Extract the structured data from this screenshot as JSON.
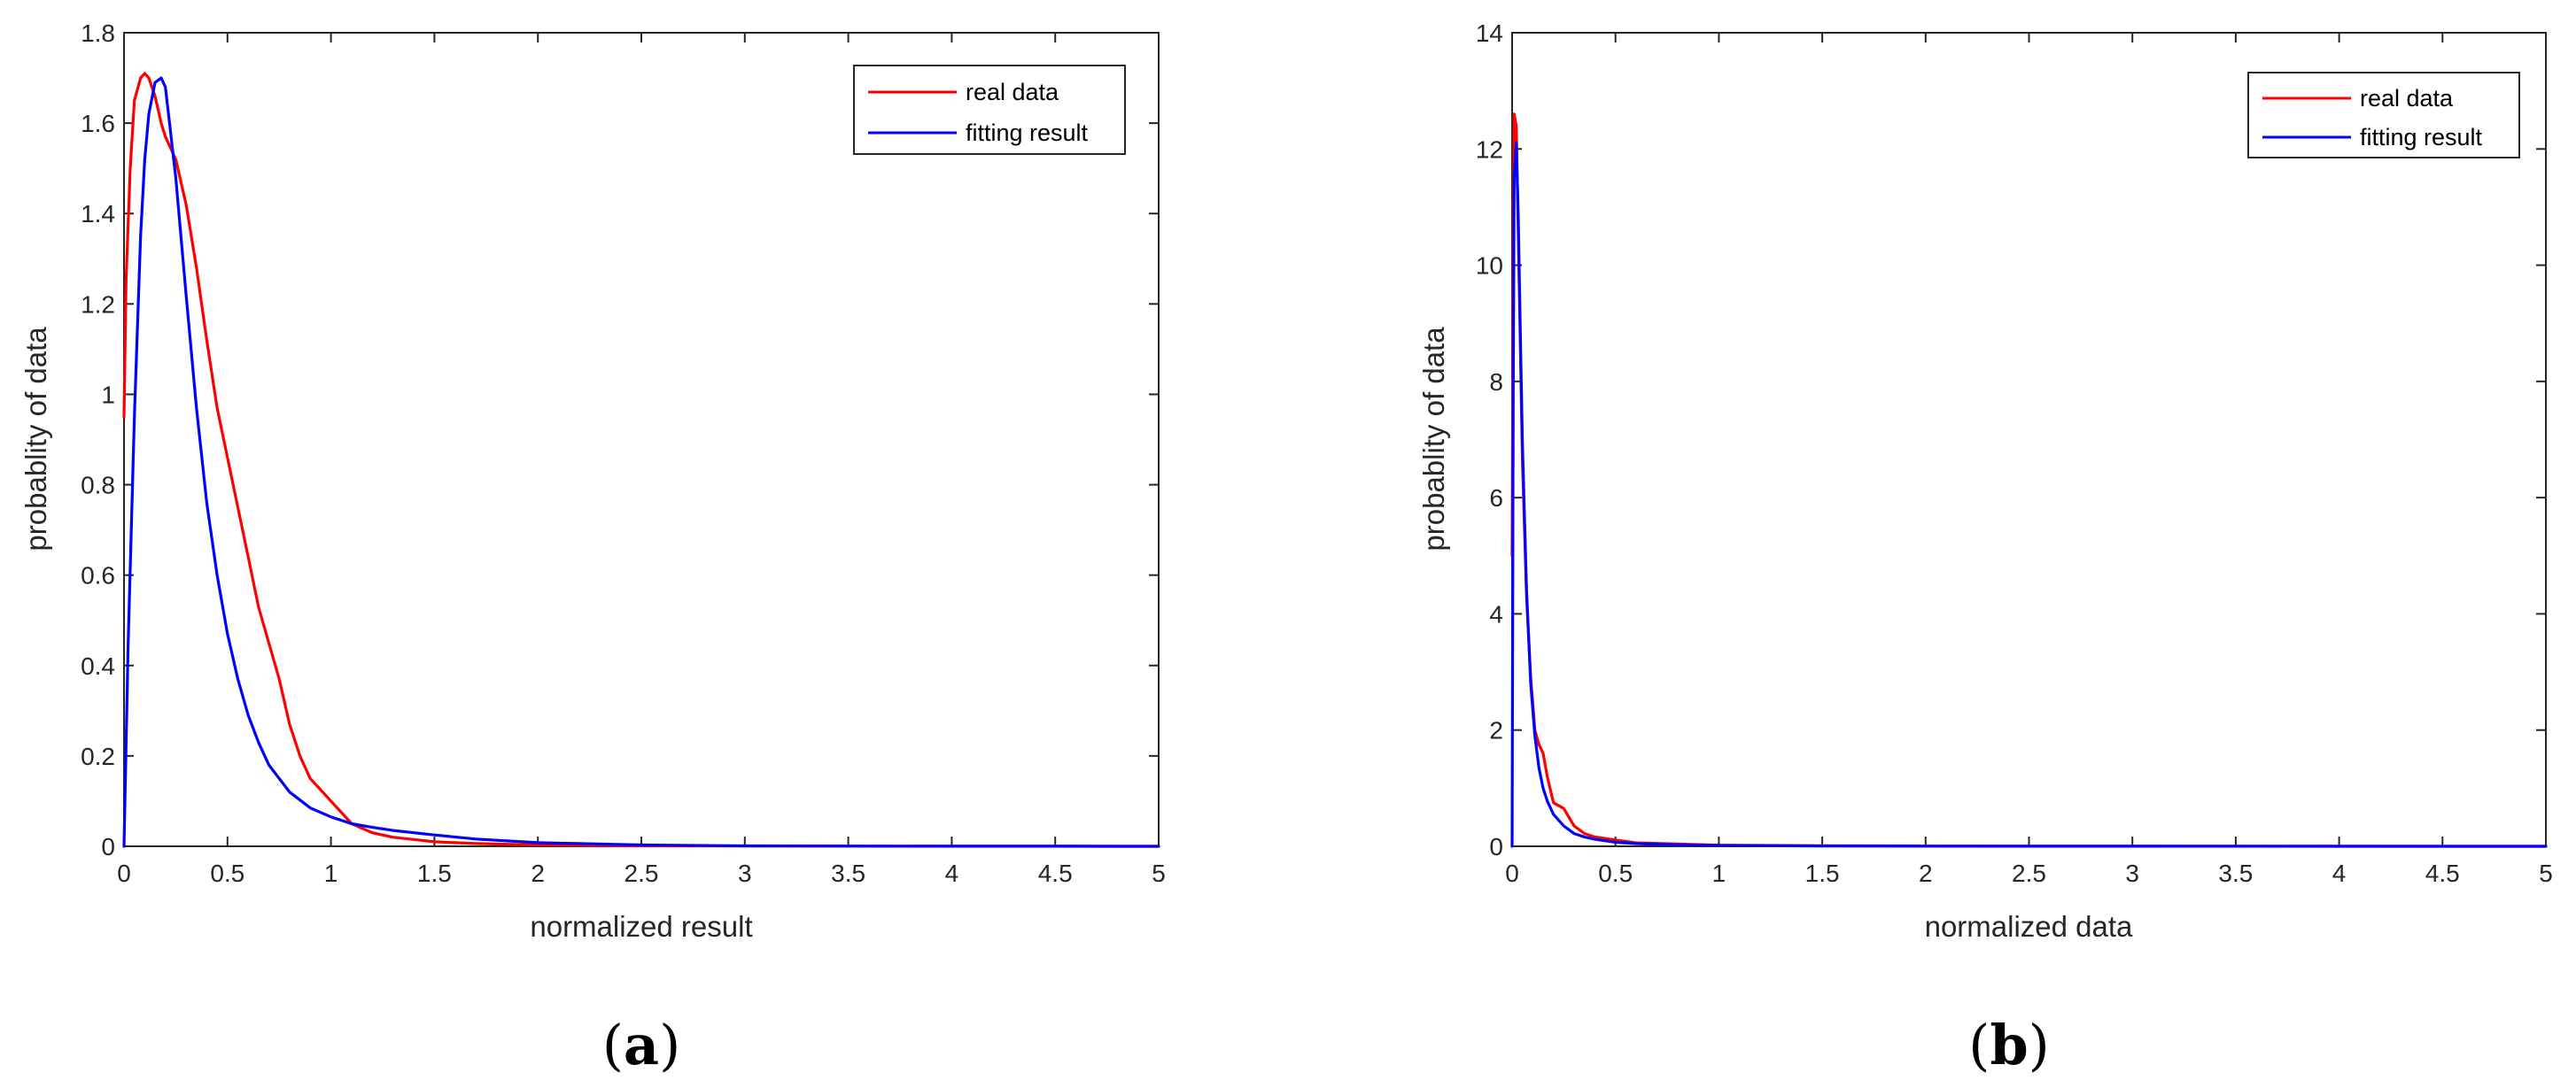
{
  "chart_data": [
    {
      "type": "line",
      "panel_label": "a",
      "xlabel": "normalized result",
      "ylabel": "probablity of data",
      "xlim": [
        0,
        5
      ],
      "ylim": [
        0,
        1.8
      ],
      "xticks": [
        "0",
        "0.5",
        "1",
        "1.5",
        "2",
        "2.5",
        "3",
        "3.5",
        "4",
        "4.5",
        "5"
      ],
      "yticks": [
        "0",
        "0.2",
        "0.4",
        "0.6",
        "0.8",
        "1",
        "1.2",
        "1.4",
        "1.6",
        "1.8"
      ],
      "legend_position": "top-right",
      "series": [
        {
          "name": "real data",
          "color": "#ff0000",
          "x": [
            0,
            0.01,
            0.03,
            0.05,
            0.08,
            0.1,
            0.12,
            0.15,
            0.18,
            0.2,
            0.25,
            0.3,
            0.35,
            0.4,
            0.45,
            0.5,
            0.55,
            0.6,
            0.65,
            0.7,
            0.75,
            0.8,
            0.85,
            0.9,
            1.0,
            1.1,
            1.2,
            1.3,
            1.4,
            1.5,
            1.7,
            2.0,
            2.5,
            3.0,
            3.5,
            4.0,
            4.5,
            5.0
          ],
          "y": [
            0.95,
            1.25,
            1.5,
            1.65,
            1.7,
            1.71,
            1.7,
            1.66,
            1.6,
            1.57,
            1.52,
            1.42,
            1.28,
            1.12,
            0.97,
            0.86,
            0.75,
            0.64,
            0.53,
            0.45,
            0.37,
            0.27,
            0.2,
            0.15,
            0.1,
            0.05,
            0.03,
            0.02,
            0.015,
            0.01,
            0.006,
            0.003,
            0.001,
            0.0005,
            0.0003,
            0.0002,
            0.0001,
            0
          ]
        },
        {
          "name": "fitting result",
          "color": "#0000ff",
          "x": [
            0,
            0.02,
            0.05,
            0.08,
            0.1,
            0.12,
            0.15,
            0.18,
            0.2,
            0.22,
            0.25,
            0.3,
            0.35,
            0.4,
            0.45,
            0.5,
            0.55,
            0.6,
            0.65,
            0.7,
            0.8,
            0.9,
            1.0,
            1.1,
            1.2,
            1.3,
            1.5,
            1.7,
            2.0,
            2.5,
            3.0,
            3.5,
            4.0,
            4.5,
            5.0
          ],
          "y": [
            0,
            0.45,
            0.95,
            1.35,
            1.52,
            1.62,
            1.69,
            1.7,
            1.68,
            1.6,
            1.48,
            1.22,
            0.97,
            0.76,
            0.6,
            0.47,
            0.37,
            0.29,
            0.23,
            0.18,
            0.12,
            0.085,
            0.065,
            0.05,
            0.042,
            0.035,
            0.025,
            0.016,
            0.008,
            0.003,
            0.001,
            0.0005,
            0.0002,
            0.0001,
            0
          ]
        }
      ]
    },
    {
      "type": "line",
      "panel_label": "b",
      "xlabel": "normalized data",
      "ylabel": "probablity of data",
      "xlim": [
        0,
        5
      ],
      "ylim": [
        0,
        14
      ],
      "xticks": [
        "0",
        "0.5",
        "1",
        "1.5",
        "2",
        "2.5",
        "3",
        "3.5",
        "4",
        "4.5",
        "5"
      ],
      "yticks": [
        "0",
        "2",
        "4",
        "6",
        "8",
        "10",
        "12",
        "14"
      ],
      "legend_position": "top-right",
      "series": [
        {
          "name": "real data",
          "color": "#ff0000",
          "x": [
            0,
            0.005,
            0.01,
            0.02,
            0.03,
            0.04,
            0.05,
            0.07,
            0.09,
            0.11,
            0.13,
            0.15,
            0.17,
            0.2,
            0.25,
            0.3,
            0.35,
            0.4,
            0.5,
            0.6,
            0.8,
            1.0,
            1.5,
            2.0,
            3.0,
            4.0,
            5.0
          ],
          "y": [
            5,
            10,
            12.6,
            12.4,
            10.5,
            8.6,
            6.6,
            4.3,
            2.9,
            2.0,
            1.75,
            1.6,
            1.2,
            0.75,
            0.65,
            0.35,
            0.22,
            0.16,
            0.11,
            0.06,
            0.04,
            0.02,
            0.01,
            0.005,
            0.002,
            0.001,
            0
          ]
        },
        {
          "name": "fitting result",
          "color": "#0000ff",
          "x": [
            0,
            0.005,
            0.01,
            0.02,
            0.03,
            0.04,
            0.05,
            0.07,
            0.09,
            0.11,
            0.13,
            0.15,
            0.17,
            0.2,
            0.25,
            0.3,
            0.35,
            0.4,
            0.5,
            0.6,
            0.8,
            1.0,
            1.5,
            2.0,
            3.0,
            4.0,
            5.0
          ],
          "y": [
            0,
            7.5,
            11.5,
            12.1,
            10.8,
            8.8,
            6.9,
            4.4,
            2.8,
            1.9,
            1.35,
            1.0,
            0.78,
            0.55,
            0.35,
            0.22,
            0.16,
            0.12,
            0.07,
            0.045,
            0.025,
            0.015,
            0.006,
            0.003,
            0.001,
            0.0005,
            0
          ]
        }
      ]
    }
  ]
}
